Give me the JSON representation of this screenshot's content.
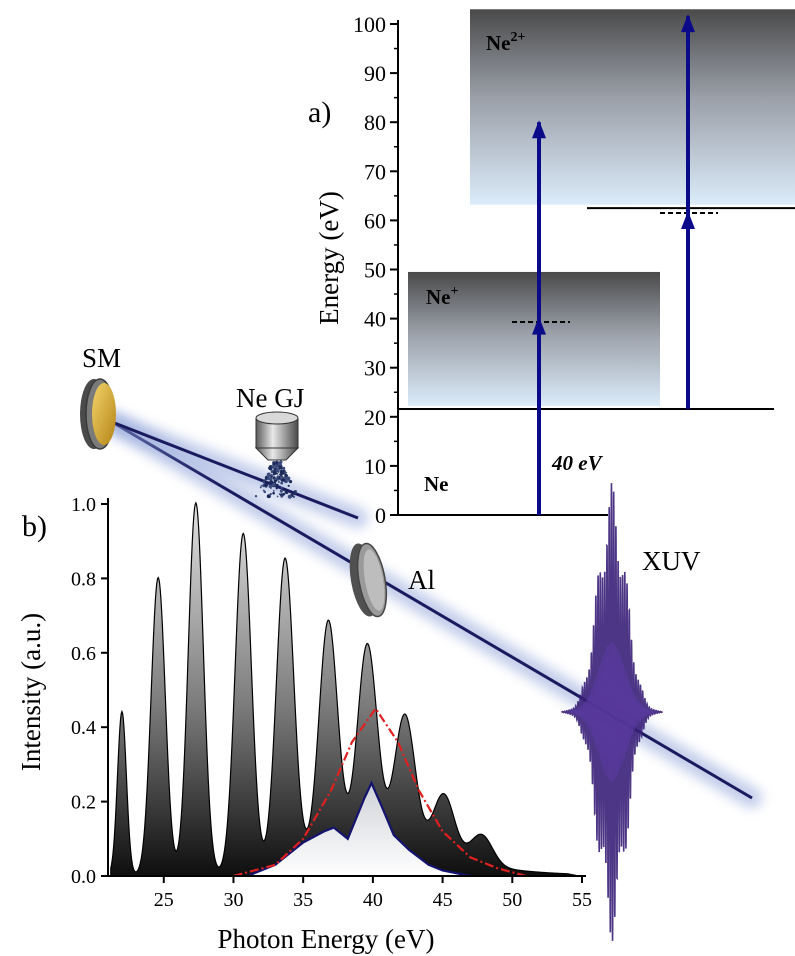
{
  "panel_a": {
    "label": "a)",
    "ylabel": "Energy (eV)",
    "ylim": [
      0,
      100
    ],
    "yticks": [
      "0",
      "10",
      "20",
      "30",
      "40",
      "50",
      "60",
      "70",
      "80",
      "90",
      "100"
    ],
    "state_ne": "Ne",
    "state_ne_plus": "Ne",
    "state_ne_plus_sup": "+",
    "state_ne_2plus": "Ne",
    "state_ne_2plus_sup": "2+",
    "photon_label": "40 eV",
    "levels": {
      "ne_plus_threshold": 21.6,
      "ne_2plus_threshold": 62.5,
      "ne_plus_band_top": 49.5,
      "ne_2plus_band_top": 103
    },
    "virtual_levels": [
      39.3,
      61.5
    ],
    "arrows": [
      {
        "from": 0,
        "via": 40,
        "to": 80
      },
      {
        "from": 21.6,
        "via": 61.5,
        "to": 101.6
      }
    ],
    "colors": {
      "arrow": "#0b0b8a",
      "band_dark": "#4a4a4a",
      "band_light": "#dcecfa"
    }
  },
  "setup": {
    "sm_label": "SM",
    "gas_jet_label": "Ne GJ",
    "filter_label": "Al",
    "pulse_label": "XUV",
    "colors": {
      "beam": "#1a1a5e",
      "glow": "#8fa3d9",
      "mirror": "#d4a020",
      "pulse": "#3a2078"
    }
  },
  "panel_b": {
    "label": "b)",
    "xlabel": "Photon Energy (eV)",
    "ylabel": "Intensity (a.u.)",
    "xlim": [
      21,
      55
    ],
    "ylim": [
      0,
      1.0
    ],
    "xticks": [
      "25",
      "30",
      "35",
      "40",
      "45",
      "50",
      "55"
    ],
    "yticks": [
      "0.0",
      "0.2",
      "0.4",
      "0.6",
      "0.8",
      "1.0"
    ]
  },
  "chart_data": {
    "type": "area",
    "x_range": [
      21,
      55
    ],
    "series": [
      {
        "harmonics": [
          {
            "x": 22.0,
            "y": 0.44
          },
          {
            "x": 24.6,
            "y": 0.8
          },
          {
            "x": 27.3,
            "y": 1.0
          },
          {
            "x": 30.7,
            "y": 0.91
          },
          {
            "x": 33.7,
            "y": 0.82
          },
          {
            "x": 36.8,
            "y": 0.61
          },
          {
            "x": 39.6,
            "y": 0.52
          },
          {
            "x": 42.3,
            "y": 0.34
          },
          {
            "x": 45.1,
            "y": 0.16
          },
          {
            "x": 47.8,
            "y": 0.08
          }
        ]
      },
      {
        "points": [
          [
            31,
            0.0
          ],
          [
            33,
            0.03
          ],
          [
            35,
            0.09
          ],
          [
            36.5,
            0.12
          ],
          [
            37.2,
            0.13
          ],
          [
            38.2,
            0.1
          ],
          [
            39.4,
            0.21
          ],
          [
            39.9,
            0.25
          ],
          [
            40.6,
            0.19
          ],
          [
            41.5,
            0.11
          ],
          [
            42.6,
            0.07
          ],
          [
            44,
            0.03
          ],
          [
            45,
            0.015
          ],
          [
            47,
            0.0
          ]
        ]
      },
      {
        "points": [
          [
            30,
            0.0
          ],
          [
            33,
            0.03
          ],
          [
            35,
            0.1
          ],
          [
            37,
            0.23
          ],
          [
            38.5,
            0.36
          ],
          [
            40.2,
            0.45
          ],
          [
            41.8,
            0.36
          ],
          [
            43.3,
            0.23
          ],
          [
            45,
            0.12
          ],
          [
            47,
            0.05
          ],
          [
            49,
            0.02
          ],
          [
            51,
            0.0
          ]
        ]
      }
    ]
  }
}
